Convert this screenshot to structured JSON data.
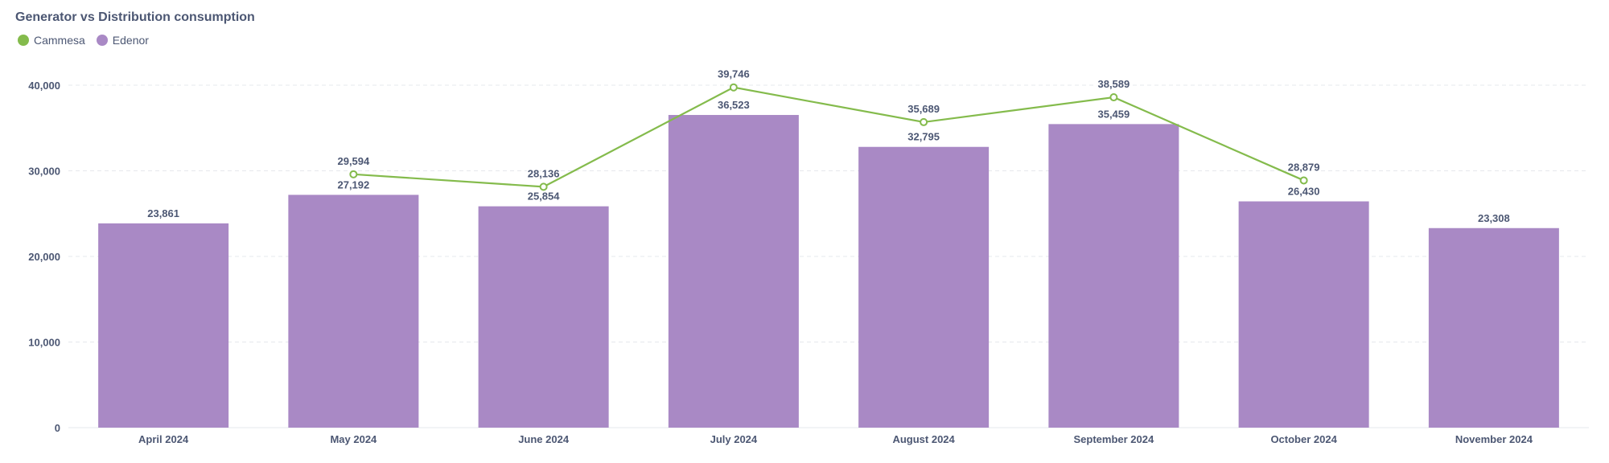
{
  "colors": {
    "cammesa": "#84bb4c",
    "edenor": "#a989c5",
    "text": "#4c5773",
    "grid": "#e6e8ec"
  },
  "chart_data": {
    "type": "bar",
    "title": "Generator vs Distribution consumption",
    "categories": [
      "April 2024",
      "May 2024",
      "June 2024",
      "July 2024",
      "August 2024",
      "September 2024",
      "October 2024",
      "November 2024"
    ],
    "series": [
      {
        "name": "Cammesa",
        "type": "line",
        "values": [
          null,
          29594,
          28136,
          39746,
          35689,
          38589,
          28879,
          null
        ]
      },
      {
        "name": "Edenor",
        "type": "bar",
        "values": [
          23861,
          27192,
          25854,
          36523,
          32795,
          35459,
          26430,
          23308
        ]
      }
    ],
    "y_ticks": [
      0,
      10000,
      20000,
      30000,
      40000
    ],
    "y_tick_labels": [
      "0",
      "10,000",
      "20,000",
      "30,000",
      "40,000"
    ],
    "ylim": [
      0,
      40000
    ],
    "xlabel": "",
    "ylabel": "",
    "grid": true,
    "legend_position": "top-left"
  }
}
